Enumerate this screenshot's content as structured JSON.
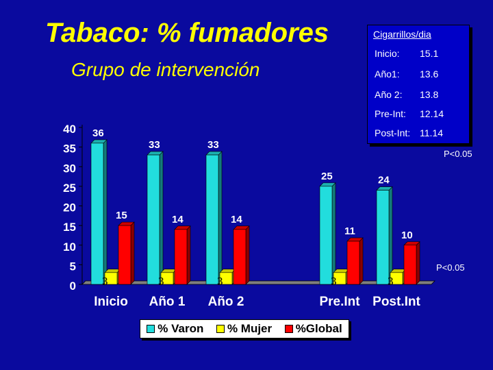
{
  "title": "Tabaco: % fumadores",
  "subtitle": "Grupo de intervención",
  "info_box": {
    "header": "Cigarrillos/dia",
    "rows": [
      {
        "label": "Inicio:",
        "value": "15.1"
      },
      {
        "label": "Año1:",
        "value": "13.6"
      },
      {
        "label": "Año 2:",
        "value": "13.8"
      },
      {
        "label": "Pre-Int:",
        "value": "12.14"
      },
      {
        "label": "Post-Int:",
        "value": "11.14"
      }
    ]
  },
  "pvalue_top": "P<0.05",
  "pvalue_bottom": "P<0.05",
  "colors": {
    "background": "#0a0a9e",
    "title": "#ffff00",
    "varon": "#22dddd",
    "mujer": "#ffff00",
    "global": "#ff0000"
  },
  "chart_data": {
    "type": "bar",
    "categories": [
      "Inicio",
      "Año 1",
      "Año 2",
      "Pre.Int",
      "Post.Int"
    ],
    "series": [
      {
        "name": "% Varon",
        "values": [
          36,
          33,
          33,
          25,
          24
        ],
        "labels": [
          "36",
          "33",
          "33",
          "25",
          "24"
        ]
      },
      {
        "name": "% Mujer",
        "values": [
          3,
          3,
          3,
          3,
          3
        ],
        "labels": [
          "3",
          "3",
          "3",
          "3",
          "3"
        ]
      },
      {
        "name": "%Global",
        "values": [
          15,
          14,
          14,
          11,
          10
        ],
        "labels": [
          "15",
          "14",
          "14",
          "11",
          "10"
        ]
      }
    ],
    "yticks": [
      "0",
      "5",
      "10",
      "15",
      "20",
      "25",
      "30",
      "35",
      "40"
    ],
    "ylim": [
      0,
      40
    ],
    "grid": false,
    "legend": "bottom"
  }
}
